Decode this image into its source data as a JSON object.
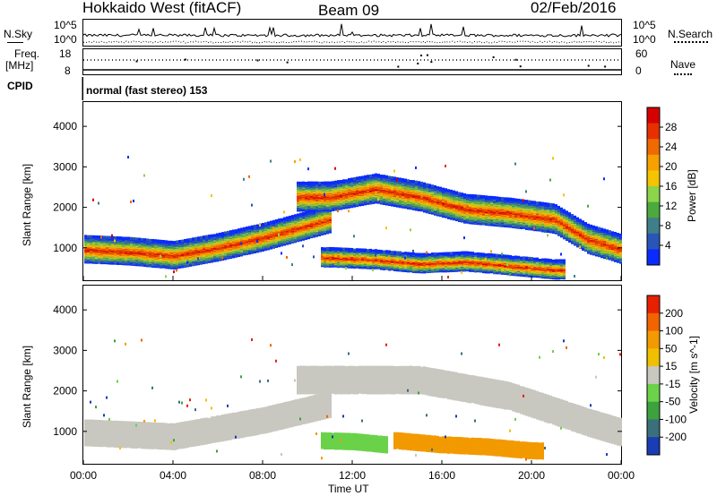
{
  "header": {
    "station": "Hokkaido West (fitACF)",
    "beam": "Beam 09",
    "date": "02/Feb/2016"
  },
  "status_strip": {
    "nsky_label": "N.Sky",
    "nsearch_label": "N.Search",
    "freq_label_top": "Freq.",
    "freq_label_bottom": "[MHz]",
    "nave_label": "Nave",
    "cpid_label": "CPID",
    "cpid_value": "normal (fast stereo) 153",
    "noise_ticks": [
      "10^5",
      "10^0"
    ],
    "freq_ticks": [
      "18",
      "8"
    ],
    "nave_ticks": [
      "60",
      "0"
    ]
  },
  "time_axis": {
    "label": "Time UT",
    "ticks": [
      "00:00",
      "04:00",
      "08:00",
      "12:00",
      "16:00",
      "20:00",
      "00:00"
    ]
  },
  "chart_data": [
    {
      "type": "heatmap",
      "title": "Power",
      "ylabel": "Slant Range [km]",
      "xlabel": "",
      "x_range_hours": [
        0,
        24
      ],
      "ylim": [
        200,
        4600
      ],
      "y_ticks": [
        "4000",
        "3000",
        "2000",
        "1000"
      ],
      "colorbar": {
        "label": "Power [dB]",
        "ticks": [
          "28",
          "24",
          "20",
          "16",
          "12",
          "8",
          "4"
        ],
        "colors": [
          "#0a2bff",
          "#2a55b8",
          "#3f7f8a",
          "#4caa3c",
          "#8cd44a",
          "#f4c400",
          "#f7a000",
          "#ef6a00",
          "#e63000",
          "#d70000"
        ]
      },
      "bands": [
        {
          "name": "near range",
          "points": [
            [
              0,
              1000
            ],
            [
              2,
              950
            ],
            [
              4,
              850
            ],
            [
              6,
              1050
            ],
            [
              8,
              1300
            ],
            [
              10,
              1600
            ],
            [
              11,
              1750
            ]
          ]
        },
        {
          "name": "far range",
          "points": [
            [
              11,
              2300
            ],
            [
              13,
              2500
            ],
            [
              15,
              2300
            ],
            [
              17,
              2000
            ],
            [
              19,
              1900
            ],
            [
              21,
              1750
            ],
            [
              22.5,
              1250
            ],
            [
              24,
              1000
            ]
          ]
        },
        {
          "name": "low range",
          "points": [
            [
              11,
              800
            ],
            [
              13,
              750
            ],
            [
              15,
              650
            ],
            [
              17,
              700
            ],
            [
              19,
              600
            ],
            [
              21,
              500
            ]
          ]
        }
      ]
    },
    {
      "type": "heatmap",
      "title": "Velocity",
      "ylabel": "Slant Range [km]",
      "xlabel": "Time UT",
      "x_range_hours": [
        0,
        24
      ],
      "ylim": [
        200,
        4600
      ],
      "y_ticks": [
        "4000",
        "3000",
        "2000",
        "1000"
      ],
      "colorbar": {
        "label": "Velocity [m s^-1]",
        "ticks": [
          "200",
          "100",
          "50",
          "15",
          "-15",
          "-50",
          "-100",
          "-200"
        ],
        "colors": [
          "#1a3cb4",
          "#3a6f7c",
          "#3da13d",
          "#6bd24a",
          "#c8c8c0",
          "#f0c000",
          "#f39a00",
          "#f16400",
          "#e72000"
        ]
      },
      "regions": [
        {
          "name": "grey near",
          "points": [
            [
              0,
              1000
            ],
            [
              4,
              900
            ],
            [
              8,
              1300
            ],
            [
              11,
              1700
            ]
          ],
          "color": "#c8c8c0"
        },
        {
          "name": "grey far",
          "points": [
            [
              11,
              2300
            ],
            [
              15,
              2300
            ],
            [
              19,
              1900
            ],
            [
              22.5,
              1250
            ],
            [
              24,
              1000
            ]
          ],
          "color": "#c8c8c0"
        },
        {
          "name": "green",
          "points": [
            [
              10.5,
              800
            ],
            [
              12,
              780
            ],
            [
              13.5,
              700
            ]
          ],
          "color": "#6bd24a"
        },
        {
          "name": "orange",
          "points": [
            [
              14,
              800
            ],
            [
              16,
              700
            ],
            [
              18,
              650
            ],
            [
              20,
              550
            ]
          ],
          "color": "#f39a00"
        }
      ]
    }
  ]
}
